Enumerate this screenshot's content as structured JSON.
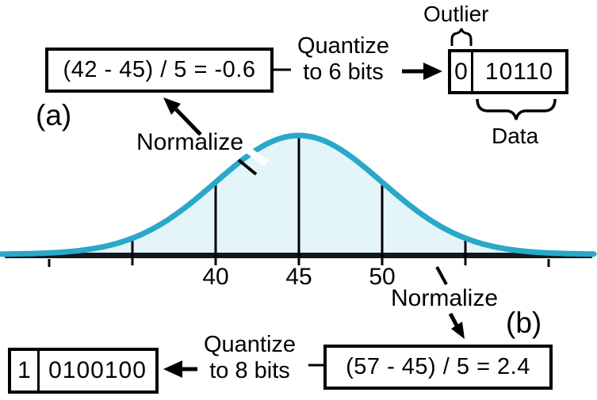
{
  "figure": {
    "panel_a": {
      "label": "(a)",
      "formula": "(42 - 45) / 5 = -0.6",
      "normalize_label": "Normalize",
      "quantize_line1": "Quantize",
      "quantize_line2": "to 6 bits",
      "bit_box": {
        "sign_bit": "0",
        "data_bits": "10110"
      },
      "outlier_label": "Outlier",
      "data_label": "Data"
    },
    "panel_b": {
      "label": "(b)",
      "formula": "(57 - 45) / 5 = 2.4",
      "normalize_label": "Normalize",
      "quantize_line1": "Quantize",
      "quantize_line2": "to 8 bits",
      "bit_box": {
        "sign_bit": "1",
        "data_bits": "0100100"
      }
    }
  },
  "distribution": {
    "type": "gaussian-curve",
    "mean": 45,
    "std": 5,
    "axis_ticks": [
      {
        "value": 30,
        "label": "",
        "line_to_curve": false
      },
      {
        "value": 35,
        "label": "",
        "line_to_curve": true
      },
      {
        "value": 40,
        "label": "40",
        "line_to_curve": true
      },
      {
        "value": 45,
        "label": "45",
        "line_to_curve": true
      },
      {
        "value": 50,
        "label": "50",
        "line_to_curve": true
      },
      {
        "value": 55,
        "label": "",
        "line_to_curve": true
      },
      {
        "value": 60,
        "label": "",
        "line_to_curve": false
      }
    ],
    "colors": {
      "curve": "#29A8C8",
      "fill": "#E4F5FA",
      "axis": "#101A20",
      "ink": "#000000"
    }
  }
}
